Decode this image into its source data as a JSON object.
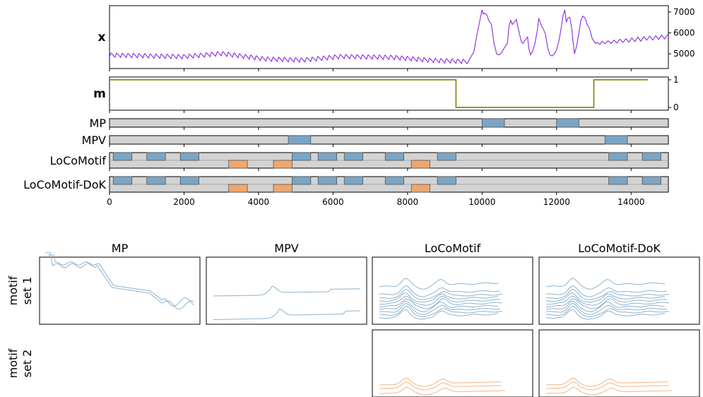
{
  "chart_data": [
    {
      "type": "line",
      "panel": "top-series",
      "ylabel": "x",
      "xlim": [
        0,
        15000
      ],
      "ylim": [
        4300,
        7300
      ],
      "yticks": [
        5000,
        6000,
        7000
      ],
      "ytick_labels": [
        "5000",
        "6000",
        "7000"
      ],
      "series": [
        {
          "color": "#8a2be2",
          "segments": [
            {
              "x_start": 0,
              "x_end": 9600,
              "period": 150,
              "base_points": [
                [
                  0,
                  4950
                ],
                [
                  2000,
                  4870
                ],
                [
                  3000,
                  5020
                ],
                [
                  4200,
                  4760
                ],
                [
                  5200,
                  4710
                ],
                [
                  6200,
                  4880
                ],
                [
                  7600,
                  4840
                ],
                [
                  8600,
                  4700
                ],
                [
                  9600,
                  4640
                ]
              ],
              "amplitude": 220
            },
            {
              "x_start": 9600,
              "x_end": 15000,
              "points": [
                [
                  9650,
                  4700
                ],
                [
                  9780,
                  5100
                ],
                [
                  9870,
                  6000
                ],
                [
                  9940,
                  6600
                ],
                [
                  10000,
                  7100
                ],
                [
                  10030,
                  6900
                ],
                [
                  10060,
                  6950
                ],
                [
                  10120,
                  6880
                ],
                [
                  10180,
                  6600
                ],
                [
                  10250,
                  6400
                ],
                [
                  10320,
                  5500
                ],
                [
                  10390,
                  5000
                ],
                [
                  10450,
                  4950
                ],
                [
                  10520,
                  5050
                ],
                [
                  10600,
                  5300
                ],
                [
                  10680,
                  5500
                ],
                [
                  10720,
                  6300
                ],
                [
                  10770,
                  6600
                ],
                [
                  10810,
                  6400
                ],
                [
                  10860,
                  6500
                ],
                [
                  10920,
                  6650
                ],
                [
                  10960,
                  6300
                ],
                [
                  11010,
                  5900
                ],
                [
                  11060,
                  5550
                ],
                [
                  11100,
                  5500
                ],
                [
                  11150,
                  5650
                ],
                [
                  11220,
                  5800
                ],
                [
                  11260,
                  5200
                ],
                [
                  11300,
                  4950
                ],
                [
                  11360,
                  5150
                ],
                [
                  11420,
                  5500
                ],
                [
                  11480,
                  6100
                ],
                [
                  11520,
                  6700
                ],
                [
                  11560,
                  6500
                ],
                [
                  11600,
                  6300
                ],
                [
                  11640,
                  6200
                ],
                [
                  11700,
                  5950
                ],
                [
                  11760,
                  5300
                ],
                [
                  11820,
                  4950
                ],
                [
                  11880,
                  4900
                ],
                [
                  11940,
                  5000
                ],
                [
                  12000,
                  5200
                ],
                [
                  12060,
                  5600
                ],
                [
                  12120,
                  6200
                ],
                [
                  12170,
                  6800
                ],
                [
                  12220,
                  7100
                ],
                [
                  12260,
                  6500
                ],
                [
                  12300,
                  6700
                ],
                [
                  12350,
                  6750
                ],
                [
                  12400,
                  6300
                ],
                [
                  12440,
                  5600
                ],
                [
                  12480,
                  5000
                ],
                [
                  12540,
                  5400
                ],
                [
                  12600,
                  6000
                ],
                [
                  12650,
                  6600
                ],
                [
                  12700,
                  6800
                ],
                [
                  12740,
                  6750
                ],
                [
                  12780,
                  6650
                ],
                [
                  12820,
                  6400
                ],
                [
                  12860,
                  6300
                ],
                [
                  12900,
                  6100
                ],
                [
                  12940,
                  5800
                ],
                [
                  13000,
                  5600
                ],
                [
                  13050,
                  5500
                ],
                [
                  13100,
                  5550
                ],
                [
                  13160,
                  5450
                ],
                [
                  13220,
                  5600
                ],
                [
                  13300,
                  5480
                ],
                [
                  13380,
                  5620
                ],
                [
                  13460,
                  5500
                ],
                [
                  13540,
                  5650
                ],
                [
                  13620,
                  5520
                ],
                [
                  13700,
                  5700
                ],
                [
                  13780,
                  5540
                ],
                [
                  13860,
                  5720
                ],
                [
                  13940,
                  5560
                ],
                [
                  14020,
                  5760
                ],
                [
                  14100,
                  5580
                ],
                [
                  14180,
                  5800
                ],
                [
                  14260,
                  5600
                ],
                [
                  14340,
                  5820
                ],
                [
                  14420,
                  5650
                ],
                [
                  14500,
                  5850
                ],
                [
                  14580,
                  5660
                ],
                [
                  14660,
                  5870
                ],
                [
                  14740,
                  5690
                ],
                [
                  14820,
                  5890
                ],
                [
                  14900,
                  5710
                ],
                [
                  15000,
                  5960
                ]
              ]
            }
          ]
        }
      ]
    },
    {
      "type": "line",
      "panel": "mask",
      "ylabel": "m",
      "xlim": [
        0,
        15000
      ],
      "ylim": [
        -0.1,
        1.1
      ],
      "yticks": [
        0,
        1
      ],
      "ytick_labels": [
        "0",
        "1"
      ],
      "series": [
        {
          "color": "#808000",
          "x": [
            0,
            9300,
            9300,
            13000,
            13000,
            14450
          ],
          "y": [
            1,
            1,
            0,
            0,
            1,
            1
          ]
        }
      ]
    },
    {
      "type": "bar",
      "panel": "motif-occurrences",
      "xlim": [
        0,
        15000
      ],
      "xticks": [
        0,
        2000,
        4000,
        6000,
        8000,
        10000,
        12000,
        14000
      ],
      "xtick_labels": [
        "0",
        "2000",
        "4000",
        "6000",
        "8000",
        "10000",
        "12000",
        "14000"
      ],
      "rows": [
        {
          "label": "MP",
          "set1": [
            [
              10000,
              10600
            ],
            [
              12000,
              12600
            ]
          ],
          "set2": []
        },
        {
          "label": "MPV",
          "set1": [
            [
              4800,
              5400
            ],
            [
              13300,
              13900
            ]
          ],
          "set2": []
        },
        {
          "label": "LoCoMotif",
          "set1": [
            [
              100,
              600
            ],
            [
              1000,
              1500
            ],
            [
              1900,
              2400
            ],
            [
              4900,
              5400
            ],
            [
              5600,
              6100
            ],
            [
              6300,
              6800
            ],
            [
              7400,
              7900
            ],
            [
              8800,
              9300
            ],
            [
              13400,
              13900
            ],
            [
              14300,
              14800
            ]
          ],
          "set2": [
            [
              3200,
              3700
            ],
            [
              4400,
              4900
            ],
            [
              8100,
              8600
            ]
          ]
        },
        {
          "label": "LoCoMotif-DoK",
          "set1": [
            [
              100,
              600
            ],
            [
              1000,
              1500
            ],
            [
              1900,
              2400
            ],
            [
              4900,
              5400
            ],
            [
              5600,
              6100
            ],
            [
              6300,
              6800
            ],
            [
              7400,
              7900
            ],
            [
              8800,
              9300
            ],
            [
              13400,
              13900
            ],
            [
              14300,
              14800
            ]
          ],
          "set2": [
            [
              3200,
              3700
            ],
            [
              4400,
              4900
            ],
            [
              8100,
              8600
            ]
          ]
        }
      ],
      "colors": {
        "set1": "#7ba5c5",
        "set2": "#f0a76d",
        "track": "#d3d3d3"
      }
    },
    {
      "type": "line",
      "panel": "motif-sets-grid",
      "row_labels": [
        "motif\nset 1",
        "motif\nset 2"
      ],
      "column_titles": [
        "MP",
        "MPV",
        "LoCoMotif",
        "LoCoMotif-DoK"
      ],
      "colors": {
        "set1": "#7ba5c5",
        "set2": "#f0a76d"
      }
    }
  ]
}
